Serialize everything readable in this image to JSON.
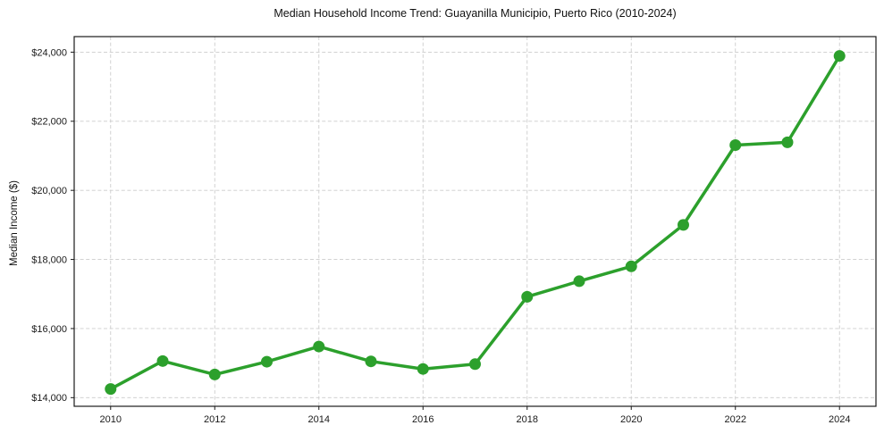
{
  "chart_data": {
    "type": "line",
    "title": "Median Household Income Trend: Guayanilla Municipio, Puerto Rico (2010-2024)",
    "xlabel": "",
    "ylabel": "Median Income ($)",
    "x": [
      2010,
      2011,
      2012,
      2013,
      2014,
      2015,
      2016,
      2017,
      2018,
      2019,
      2020,
      2021,
      2022,
      2023,
      2024
    ],
    "values": [
      14250,
      15060,
      14670,
      15040,
      15480,
      15050,
      14830,
      14970,
      16920,
      17370,
      17800,
      19000,
      21310,
      21390,
      23890
    ],
    "series_name": "Median Household Income",
    "xlim": [
      2009.3,
      2024.7
    ],
    "ylim": [
      13750,
      24450
    ],
    "xticks": [
      2010,
      2012,
      2014,
      2016,
      2018,
      2020,
      2022,
      2024
    ],
    "xtick_labels": [
      "2010",
      "2012",
      "2014",
      "2016",
      "2018",
      "2020",
      "2022",
      "2024"
    ],
    "yticks": [
      14000,
      16000,
      18000,
      20000,
      22000,
      24000
    ],
    "ytick_labels": [
      "$14,000",
      "$16,000",
      "$18,000",
      "$20,000",
      "$22,000",
      "$24,000"
    ],
    "grid": true,
    "grid_style": "dashed",
    "legend": false,
    "line_color": "#2ca02c",
    "marker": "circle",
    "marker_radius": 6.5,
    "line_width": 3.5,
    "grid_color": "#cccccc",
    "axis_color": "#1a1a1a",
    "background": "#ffffff"
  }
}
